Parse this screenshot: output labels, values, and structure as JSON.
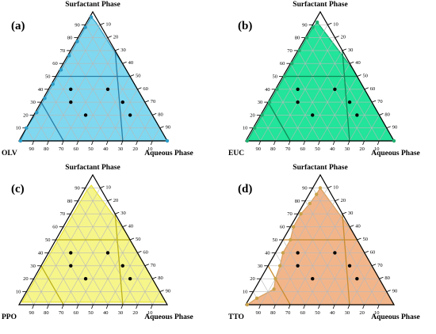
{
  "panels": [
    {
      "id": "a",
      "letter": "(a)",
      "top_label": "Surfactant Phase",
      "left_label": "OLV",
      "right_label": "Aqueous Phase",
      "region_color": "#7fd8f0",
      "region_stroke": "#3aa0c8",
      "dot_color": "#2a9bc7",
      "line_color": "#2a7fa8"
    },
    {
      "id": "b",
      "letter": "(b)",
      "top_label": "Surfactant Phase",
      "left_label": "EUC",
      "right_label": "Aqueous Phase",
      "region_color": "#22e49a",
      "region_stroke": "#14a86e",
      "dot_color": "#1fae6e",
      "line_color": "#0f8c58"
    },
    {
      "id": "c",
      "letter": "(c)",
      "top_label": "Surfactant Phase",
      "left_label": "PPO",
      "right_label": "Aqueous Phase",
      "region_color": "#f6f58a",
      "region_stroke": "#e8e236",
      "dot_color": "#e8e236",
      "line_color": "#bdb21a"
    },
    {
      "id": "d",
      "letter": "(d)",
      "top_label": "Surfactant Phase",
      "left_label": "TTO",
      "right_label": "Aqueous Phase",
      "region_color": "#f2b58a",
      "region_stroke": "#d8a060",
      "dot_color": "#c9a24a",
      "line_color": "#c98c30"
    }
  ],
  "tick_labels": [
    "10",
    "20",
    "30",
    "40",
    "50",
    "60",
    "70",
    "80",
    "90"
  ]
}
